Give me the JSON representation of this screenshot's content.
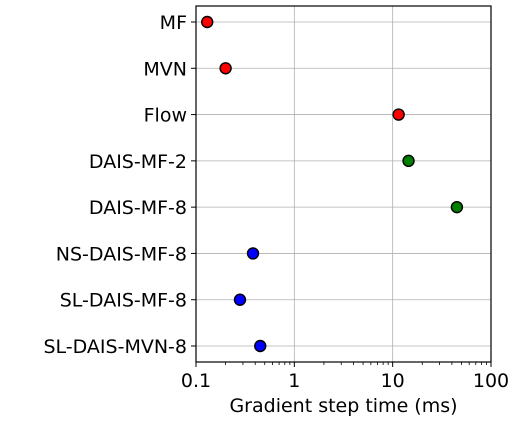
{
  "chart_data": {
    "type": "scatter",
    "xlabel": "Gradient step time (ms)",
    "ylabel": "",
    "title": "",
    "xscale": "log",
    "xlim": [
      0.1,
      100
    ],
    "xticks": [
      0.1,
      1,
      10,
      100
    ],
    "xtick_labels": [
      "0.1",
      "1",
      "10",
      "100"
    ],
    "grid": true,
    "categories": [
      "MF",
      "MVN",
      "Flow",
      "DAIS-MF-2",
      "DAIS-MF-8",
      "NS-DAIS-MF-8",
      "SL-DAIS-MF-8",
      "SL-DAIS-MVN-8"
    ],
    "points": [
      {
        "label": "MF",
        "x": 0.13,
        "color": "#ff0000"
      },
      {
        "label": "MVN",
        "x": 0.2,
        "color": "#ff0000"
      },
      {
        "label": "Flow",
        "x": 11.5,
        "color": "#ff0000"
      },
      {
        "label": "DAIS-MF-2",
        "x": 14.5,
        "color": "#008000"
      },
      {
        "label": "DAIS-MF-8",
        "x": 45,
        "color": "#008000"
      },
      {
        "label": "NS-DAIS-MF-8",
        "x": 0.38,
        "color": "#0000ff"
      },
      {
        "label": "SL-DAIS-MF-8",
        "x": 0.28,
        "color": "#0000ff"
      },
      {
        "label": "SL-DAIS-MVN-8",
        "x": 0.45,
        "color": "#0000ff"
      }
    ]
  }
}
